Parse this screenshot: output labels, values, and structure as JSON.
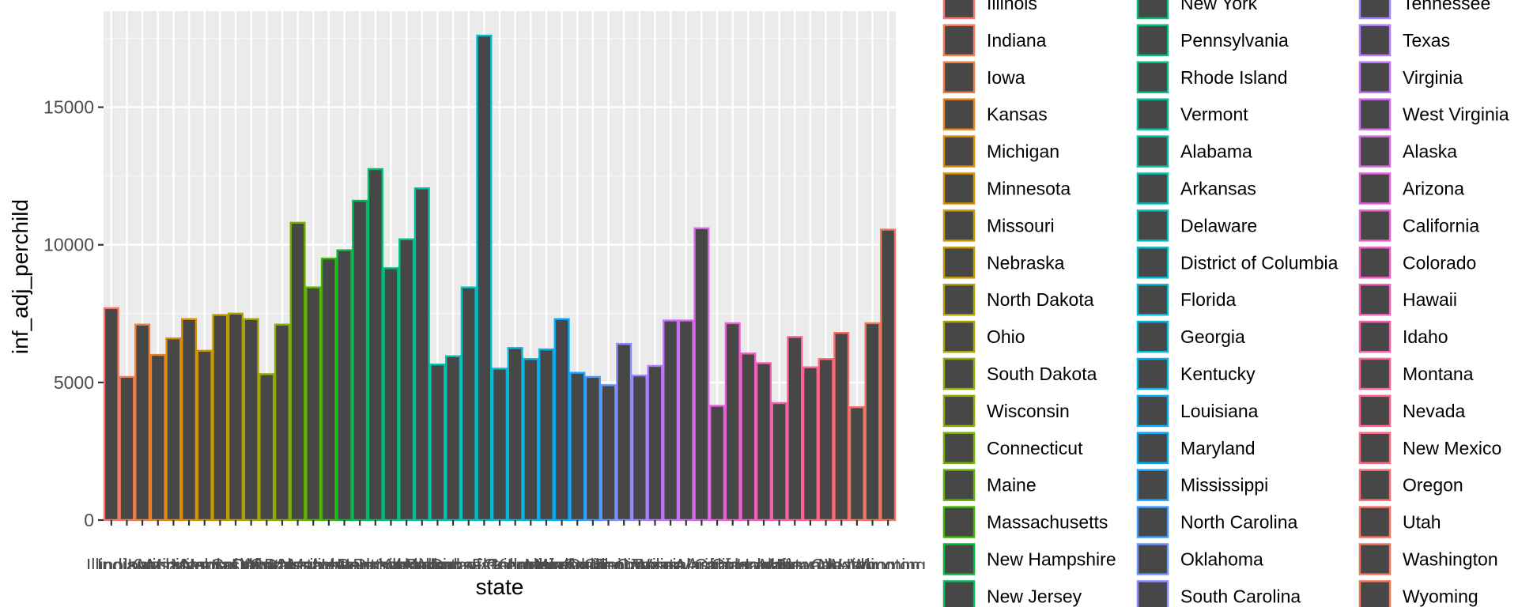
{
  "chart_data": {
    "type": "bar",
    "xlabel": "state",
    "ylabel": "inf_adj_perchild",
    "ylim": [
      0,
      18500
    ],
    "yticks": [
      0,
      5000,
      10000,
      15000
    ],
    "ytick_labels": [
      "0",
      "5000",
      "10000",
      "15000"
    ],
    "grid": true,
    "legend_position": "right",
    "fill_color": "#474747",
    "categories": [
      "Illinois",
      "Indiana",
      "Iowa",
      "Kansas",
      "Michigan",
      "Minnesota",
      "Missouri",
      "Nebraska",
      "North Dakota",
      "Ohio",
      "South Dakota",
      "Wisconsin",
      "Connecticut",
      "Maine",
      "Massachusetts",
      "New Hampshire",
      "New Jersey",
      "New York",
      "Pennsylvania",
      "Rhode Island",
      "Vermont",
      "Alabama",
      "Arkansas",
      "Delaware",
      "District of Columbia",
      "Florida",
      "Georgia",
      "Kentucky",
      "Louisiana",
      "Maryland",
      "Mississippi",
      "North Carolina",
      "Oklahoma",
      "South Carolina",
      "Tennessee",
      "Texas",
      "Virginia",
      "West Virginia",
      "Alaska",
      "Arizona",
      "California",
      "Colorado",
      "Hawaii",
      "Idaho",
      "Montana",
      "Nevada",
      "New Mexico",
      "Oregon",
      "Utah",
      "Washington",
      "Wyoming"
    ],
    "values": [
      7700,
      5200,
      7100,
      6000,
      6600,
      7300,
      6150,
      7450,
      7500,
      7300,
      5300,
      7100,
      10800,
      8450,
      9500,
      9800,
      11600,
      12750,
      9150,
      10200,
      12050,
      5650,
      5950,
      8450,
      17600,
      5500,
      6250,
      5850,
      6200,
      7300,
      5350,
      5200,
      4900,
      6400,
      5250,
      5600,
      7250,
      7250,
      10600,
      4150,
      7150,
      6050,
      5700,
      4250,
      6650,
      5550,
      5850,
      6800,
      4100,
      7150,
      10550
    ],
    "series_colors": [
      "#F8766D",
      "#F47B56",
      "#EF7F3D",
      "#E8851E",
      "#E08B00",
      "#D89000",
      "#CD9600",
      "#C29A00",
      "#B69F00",
      "#A8A400",
      "#9AA800",
      "#89AC00",
      "#75B000",
      "#5DB400",
      "#3CB700",
      "#00BA38",
      "#00BC59",
      "#00BE6D",
      "#00BF7D",
      "#00C08C",
      "#00C19A",
      "#00C1A7",
      "#00C1B4",
      "#00C0C0",
      "#00BECB",
      "#00BCD6",
      "#00B9E0",
      "#00B5E9",
      "#00B0F2",
      "#00AAF9",
      "#1CA4FF",
      "#3E9CFF",
      "#6B94FF",
      "#8B8CFF",
      "#A184FF",
      "#B37BFF",
      "#C373F8",
      "#D06DF0",
      "#DB66E7",
      "#E462DC",
      "#EC5FD1",
      "#F25EC4",
      "#F75DB6",
      "#FB5EA7",
      "#FE609A",
      "#FF638C",
      "#FF677E",
      "#FB6C72",
      "#F87066",
      "#F4735C",
      "#F07654"
    ]
  }
}
